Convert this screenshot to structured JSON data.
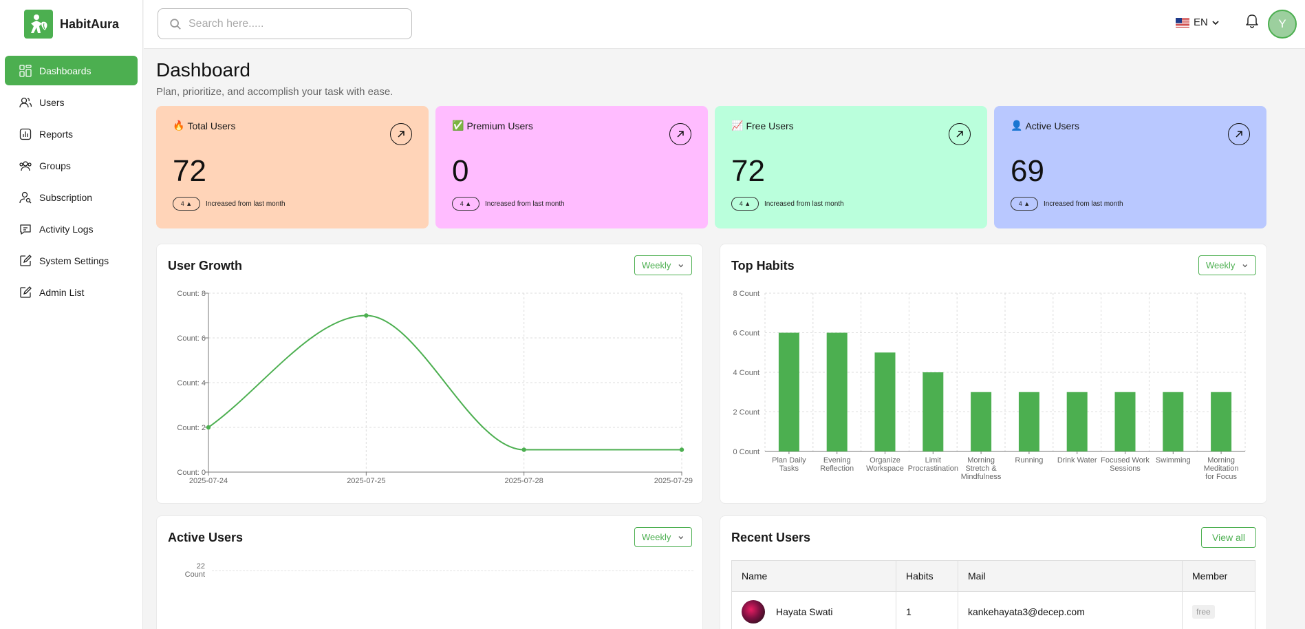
{
  "brand": {
    "name": "HabitAura",
    "logo_icon": "habit-leaf-person-icon",
    "color": "#4caf50"
  },
  "sidebar": {
    "items": [
      {
        "label": "Dashboards",
        "icon": "grid-icon",
        "active": true
      },
      {
        "label": "Users",
        "icon": "users-icon",
        "active": false
      },
      {
        "label": "Reports",
        "icon": "bar-chart-icon",
        "active": false
      },
      {
        "label": "Groups",
        "icon": "group-icon",
        "active": false
      },
      {
        "label": "Subscription",
        "icon": "user-key-icon",
        "active": false
      },
      {
        "label": "Activity Logs",
        "icon": "message-log-icon",
        "active": false
      },
      {
        "label": "System Settings",
        "icon": "edit-settings-icon",
        "active": false
      },
      {
        "label": "Admin List",
        "icon": "edit-list-icon",
        "active": false
      }
    ]
  },
  "topbar": {
    "search_placeholder": "Search here.....",
    "language": "EN",
    "flag_icon": "us-flag-icon",
    "avatar_initial": "Y"
  },
  "page": {
    "title": "Dashboard",
    "subtitle": "Plan, prioritize, and accomplish your task with ease."
  },
  "stats": [
    {
      "label": "Total Users",
      "emoji": "🔥",
      "value": "72",
      "change": "4 ▲",
      "note": "Increased from last month",
      "color": "#ffd4b8"
    },
    {
      "label": "Premium Users",
      "emoji": "✅",
      "value": "0",
      "change": "4 ▲",
      "note": "Increased from last month",
      "color": "#ffbcff"
    },
    {
      "label": "Free Users",
      "emoji": "📈",
      "value": "72",
      "change": "4 ▲",
      "note": "Increased from last month",
      "color": "#baffdc"
    },
    {
      "label": "Active Users",
      "emoji": "👤",
      "value": "69",
      "change": "4 ▲",
      "note": "Increased from last month",
      "color": "#b9c8ff"
    }
  ],
  "user_growth": {
    "title": "User Growth",
    "filter": "Weekly"
  },
  "top_habits": {
    "title": "Top Habits",
    "filter": "Weekly"
  },
  "active_users": {
    "title": "Active Users",
    "filter": "Weekly",
    "y_max_label": "22",
    "y_unit_label": "Count"
  },
  "recent_users": {
    "title": "Recent Users",
    "view_all": "View all",
    "columns": [
      "Name",
      "Habits",
      "Mail",
      "Member"
    ],
    "rows": [
      {
        "name": "Hayata Swati",
        "habits": "1",
        "mail": "kankehayata3@decep.com",
        "member": "free"
      }
    ]
  },
  "chart_data": [
    {
      "type": "line",
      "title": "User Growth",
      "x": [
        "2025-07-24",
        "2025-07-25",
        "2025-07-28",
        "2025-07-29"
      ],
      "series": [
        {
          "values": [
            2,
            7,
            1,
            1
          ]
        }
      ],
      "y_tick_labels": [
        "Count: 0",
        "Count: 2",
        "Count: 4",
        "Count: 6",
        "Count: 8"
      ],
      "ylim": [
        0,
        8
      ],
      "grid": true,
      "color": "#4caf50"
    },
    {
      "type": "bar",
      "title": "Top Habits",
      "categories": [
        "Plan Daily Tasks",
        "Evening Reflection",
        "Organize Workspace",
        "Limit Procrastination",
        "Morning Stretch & Mindfulness",
        "Running",
        "Drink Water",
        "Focused Work Sessions",
        "Swimming",
        "Morning Meditation for Focus"
      ],
      "values": [
        6,
        6,
        5,
        4,
        3,
        3,
        3,
        3,
        3,
        3
      ],
      "y_tick_labels": [
        "0 Count",
        "2 Count",
        "4 Count",
        "6 Count",
        "8 Count"
      ],
      "ylim": [
        0,
        8
      ],
      "grid": true,
      "color": "#4caf50"
    }
  ]
}
